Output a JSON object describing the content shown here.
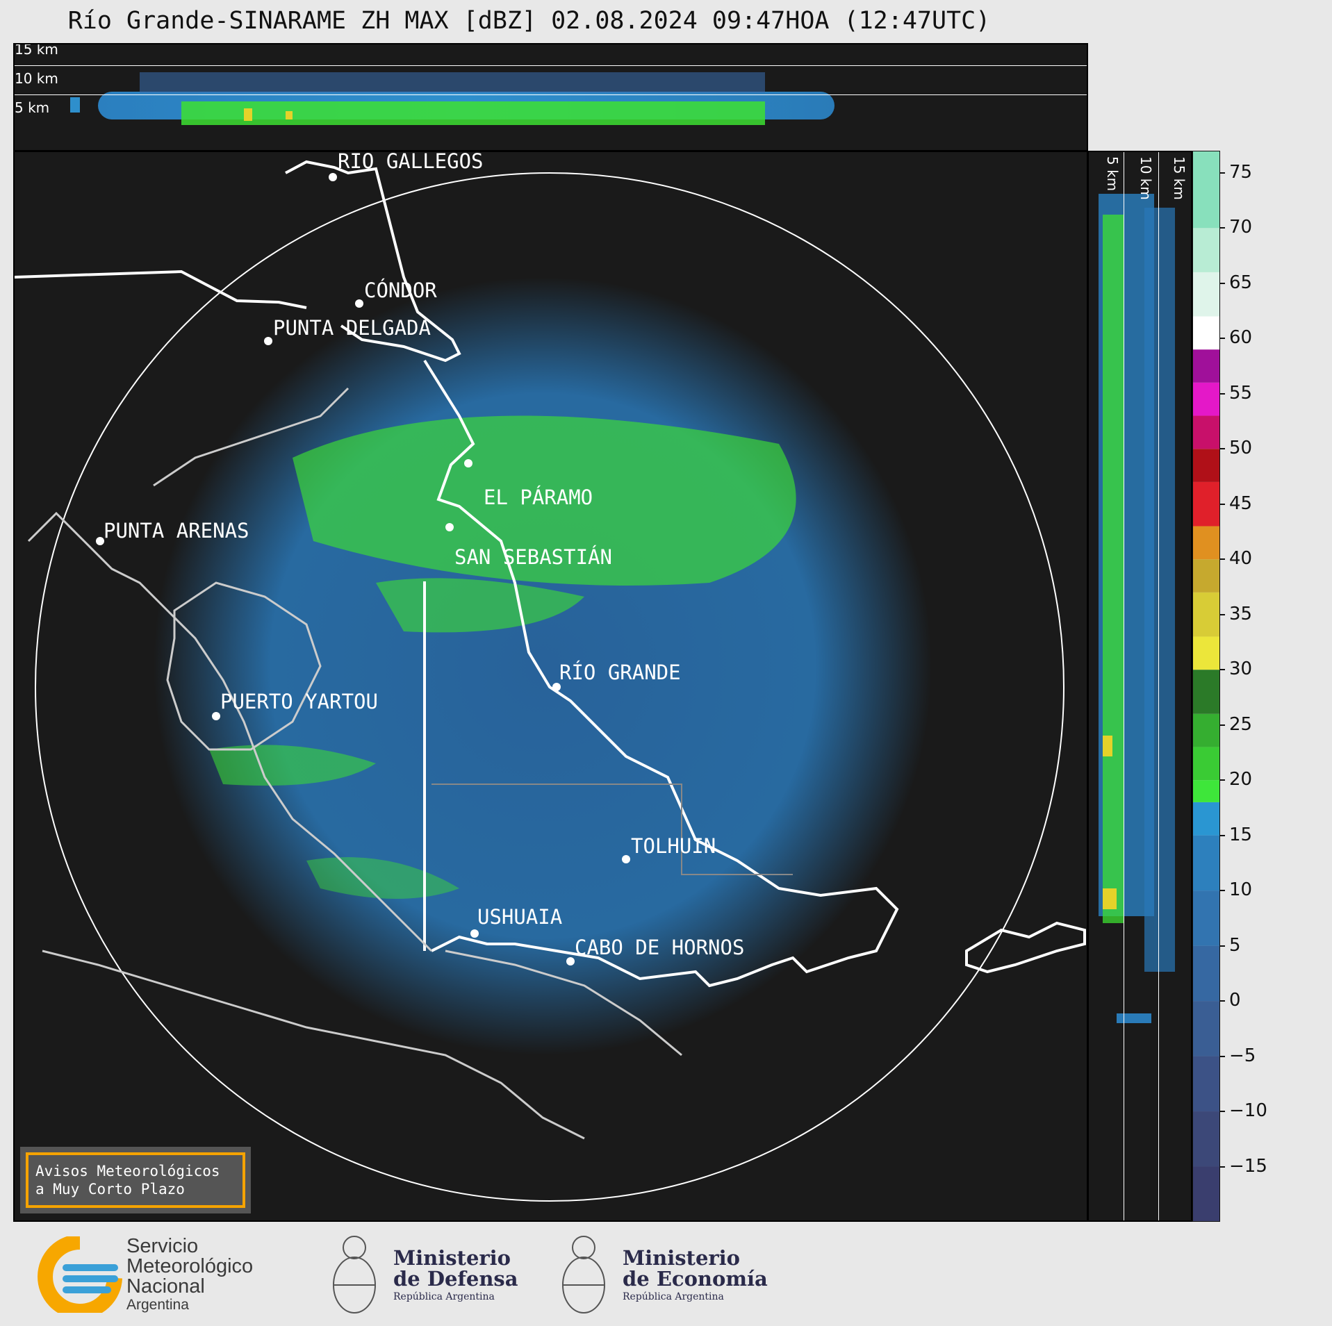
{
  "title": "Río Grande-SINARAME ZH MAX [dBZ] 02.08.2024 09:47HOA (12:47UTC)",
  "height_labels": {
    "top": [
      "15 km",
      "10 km",
      "5 km"
    ],
    "side": [
      "5 km",
      "10 km",
      "15 km"
    ]
  },
  "cities": [
    {
      "name": "RÍO GALLEGOS"
    },
    {
      "name": "CÓNDOR"
    },
    {
      "name": "PUNTA DELGADA"
    },
    {
      "name": "EL PÁRAMO"
    },
    {
      "name": "PUNTA ARENAS"
    },
    {
      "name": "SAN SEBASTIÁN"
    },
    {
      "name": "RÍO GRANDE"
    },
    {
      "name": "PUERTO YARTOU"
    },
    {
      "name": "TOLHUIN"
    },
    {
      "name": "USHUAIA"
    },
    {
      "name": "CABO DE HORNOS"
    }
  ],
  "warning_box": {
    "line1": "Avisos Meteorológicos",
    "line2": "a Muy Corto Plazo",
    "border_color": "#f5a300"
  },
  "colorbar": {
    "unit": "dBZ",
    "ticks": [
      "75",
      "70",
      "65",
      "60",
      "55",
      "50",
      "45",
      "40",
      "35",
      "30",
      "25",
      "20",
      "15",
      "10",
      "5",
      "0",
      "−5",
      "−10",
      "−15"
    ],
    "range": [
      -20,
      77
    ]
  },
  "footer": {
    "smn": {
      "line1": "Servicio",
      "line2": "Meteorológico",
      "line3": "Nacional",
      "line4": "Argentina"
    },
    "defensa": {
      "line1": "Ministerio",
      "line2": "de Defensa",
      "line3": "República Argentina"
    },
    "economia": {
      "line1": "Ministerio",
      "line2": "de Economía",
      "line3": "República Argentina"
    }
  }
}
